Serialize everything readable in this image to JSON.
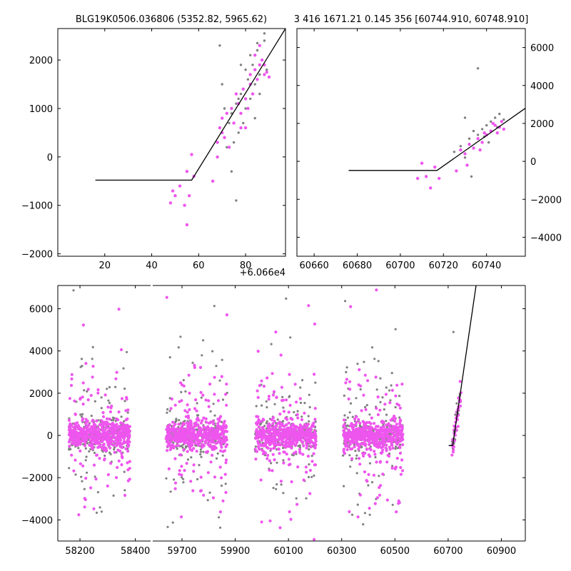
{
  "chart_data": [
    {
      "id": "top-left",
      "type": "scatter",
      "title": "BLG19K0506.036806 (5352.82, 5965.62)",
      "offset_label": "+6.066e4",
      "xlim": [
        0,
        97
      ],
      "ylim": [
        -2050,
        2650
      ],
      "xticks": [
        20,
        40,
        60,
        80
      ],
      "xtick_labels": [
        "20",
        "40",
        "60",
        "80"
      ],
      "yticks": [
        -2000,
        -1000,
        0,
        1000,
        2000
      ],
      "ytick_labels": [
        "−2000",
        "−1000",
        "0",
        "1000",
        "2000"
      ],
      "model_line": [
        [
          16,
          -480
        ],
        [
          57,
          -480
        ],
        [
          97,
          2650
        ]
      ],
      "series": [
        {
          "name": "gray",
          "color": "#808080",
          "points": [
            [
              70,
              1500
            ],
            [
              72,
              200
            ],
            [
              74,
              900
            ],
            [
              75,
              300
            ],
            [
              76,
              1100
            ],
            [
              77,
              500
            ],
            [
              78,
              1300
            ],
            [
              79,
              700
            ],
            [
              80,
              1000
            ],
            [
              81,
              1600
            ],
            [
              82,
              1200
            ],
            [
              83,
              1900
            ],
            [
              84,
              1500
            ],
            [
              85,
              2200
            ],
            [
              86,
              1700
            ],
            [
              87,
              2000
            ],
            [
              88,
              2400
            ],
            [
              89,
              1800
            ],
            [
              73,
              700
            ],
            [
              71,
              1000
            ],
            [
              74,
              -300
            ],
            [
              76,
              -900
            ],
            [
              69,
              2300
            ],
            [
              82,
              2100
            ],
            [
              85,
              2350
            ],
            [
              88,
              2550
            ],
            [
              80,
              1800
            ],
            [
              78,
              1900
            ],
            [
              77,
              1200
            ],
            [
              84,
              800
            ],
            [
              86,
              1300
            ]
          ]
        },
        {
          "name": "magenta",
          "color": "#ee55ee",
          "points": [
            [
              48,
              -950
            ],
            [
              49,
              -700
            ],
            [
              50,
              -800
            ],
            [
              52,
              -600
            ],
            [
              54,
              -1000
            ],
            [
              55,
              -1400
            ],
            [
              55,
              -300
            ],
            [
              56,
              -800
            ],
            [
              57,
              50
            ],
            [
              58,
              -400
            ],
            [
              66,
              -500
            ],
            [
              68,
              300
            ],
            [
              69,
              600
            ],
            [
              70,
              800
            ],
            [
              71,
              400
            ],
            [
              72,
              900
            ],
            [
              73,
              200
            ],
            [
              74,
              1000
            ],
            [
              75,
              700
            ],
            [
              76,
              1300
            ],
            [
              77,
              1100
            ],
            [
              78,
              900
            ],
            [
              79,
              1400
            ],
            [
              80,
              1200
            ],
            [
              81,
              1000
            ],
            [
              82,
              1500
            ],
            [
              83,
              1300
            ],
            [
              84,
              1800
            ],
            [
              85,
              1600
            ],
            [
              86,
              1900
            ],
            [
              87,
              2000
            ],
            [
              88,
              1700
            ],
            [
              89,
              1750
            ],
            [
              90,
              1650
            ],
            [
              68,
              0
            ],
            [
              70,
              500
            ],
            [
              80,
              600
            ],
            [
              82,
              1700
            ],
            [
              84,
              2100
            ],
            [
              86,
              2300
            ],
            [
              88,
              1900
            ],
            [
              78,
              600
            ]
          ]
        }
      ]
    },
    {
      "id": "top-right",
      "type": "scatter",
      "title": "3 416 1671.21 0.145 356 [60744.910, 60748.910]",
      "xlim": [
        60652,
        60758
      ],
      "ylim": [
        -5000,
        7000
      ],
      "xticks": [
        60660,
        60680,
        60700,
        60720,
        60740
      ],
      "xtick_labels": [
        "60660",
        "60680",
        "60700",
        "60720",
        "60740"
      ],
      "yticks": [
        -4000,
        -2000,
        0,
        2000,
        4000,
        6000
      ],
      "ytick_labels": [
        "−4000",
        "−2000",
        "0",
        "2000",
        "4000",
        "6000"
      ],
      "model_line": [
        [
          60676,
          -480
        ],
        [
          60717,
          -480
        ],
        [
          60758,
          2800
        ]
      ],
      "series": [
        {
          "name": "gray",
          "color": "#808080",
          "points": [
            [
              60725,
              500
            ],
            [
              60728,
              800
            ],
            [
              60730,
              2300
            ],
            [
              60732,
              1200
            ],
            [
              60734,
              1600
            ],
            [
              60736,
              1400
            ],
            [
              60738,
              1700
            ],
            [
              60740,
              1900
            ],
            [
              60742,
              2100
            ],
            [
              60744,
              2300
            ],
            [
              60746,
              2500
            ],
            [
              60748,
              2200
            ],
            [
              60736,
              4900
            ],
            [
              60730,
              200
            ],
            [
              60733,
              -800
            ],
            [
              60741,
              1000
            ],
            [
              60745,
              1800
            ],
            [
              60739,
              1300
            ]
          ]
        },
        {
          "name": "magenta",
          "color": "#ee55ee",
          "points": [
            [
              60708,
              -900
            ],
            [
              60710,
              -100
            ],
            [
              60712,
              -800
            ],
            [
              60714,
              -1400
            ],
            [
              60716,
              -300
            ],
            [
              60718,
              -900
            ],
            [
              60726,
              -500
            ],
            [
              60728,
              600
            ],
            [
              60730,
              400
            ],
            [
              60732,
              900
            ],
            [
              60734,
              700
            ],
            [
              60736,
              1200
            ],
            [
              60738,
              1000
            ],
            [
              60740,
              1400
            ],
            [
              60742,
              1600
            ],
            [
              60744,
              1900
            ],
            [
              60746,
              1800
            ],
            [
              60748,
              1700
            ],
            [
              60747,
              2100
            ],
            [
              60743,
              2000
            ],
            [
              60737,
              600
            ],
            [
              60731,
              -200
            ],
            [
              60745,
              1500
            ],
            [
              60739,
              1500
            ]
          ]
        }
      ]
    },
    {
      "id": "bottom",
      "type": "scatter",
      "ylim": [
        -5000,
        7100
      ],
      "yticks": [
        -4000,
        -2000,
        0,
        2000,
        4000,
        6000
      ],
      "ytick_labels": [
        "−4000",
        "−2000",
        "0",
        "2000",
        "4000",
        "6000"
      ],
      "segments": [
        {
          "xlim": [
            58120,
            58455
          ],
          "xticks": [
            58200,
            58400
          ],
          "xtick_labels": [
            "58200",
            "58400"
          ],
          "data_range": [
            58160,
            58380
          ]
        },
        {
          "xlim": [
            59590,
            60990
          ],
          "xticks": [
            59700,
            59900,
            60100,
            60300,
            60500,
            60700,
            60900
          ],
          "xtick_labels": [
            "59700",
            "59900",
            "60100",
            "60300",
            "60500",
            "60700",
            "60900"
          ],
          "data_ranges": [
            [
              59640,
              59870
            ],
            [
              59975,
              60205
            ],
            [
              60305,
              60530
            ]
          ]
        }
      ],
      "rise_range": [
        60713,
        60750
      ],
      "model_line": [
        [
          60702,
          -480
        ],
        [
          60717,
          -480
        ],
        [
          60805,
          7100
        ]
      ],
      "series_colors": {
        "gray": "#808080",
        "magenta": "#ee55ee"
      }
    }
  ]
}
